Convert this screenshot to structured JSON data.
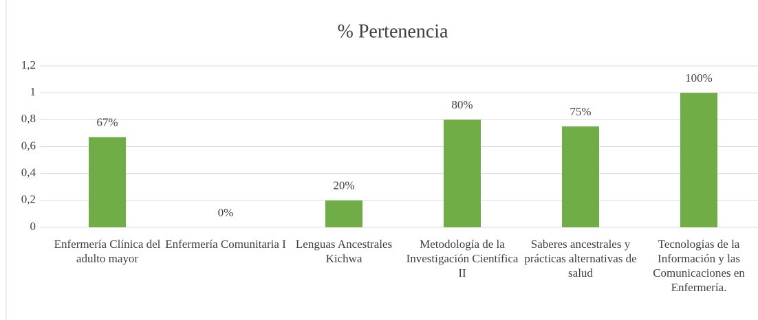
{
  "chart_data": {
    "type": "bar",
    "title": "% Pertenencia",
    "categories": [
      "Enfermería Clínica del adulto mayor",
      "Enfermería Comunitaria I",
      "Lenguas Ancestrales Kichwa",
      "Metodología de la Investigación Científica II",
      "Saberes ancestrales y prácticas alternativas de salud",
      "Tecnologías de la Información y las Comunicaciones en Enfermería."
    ],
    "values": [
      0.67,
      0,
      0.2,
      0.8,
      0.75,
      1
    ],
    "value_labels": [
      "67%",
      "0%",
      "20%",
      "80%",
      "75%",
      "100%"
    ],
    "color": "#70ad47",
    "ylim": [
      0,
      1.2
    ],
    "yticks": [
      0,
      {
        "value": 0.2,
        "label": "0,2"
      },
      {
        "value": 0.4,
        "label": "0,4"
      },
      {
        "value": 0.6,
        "label": "0,6"
      },
      {
        "value": 0.8,
        "label": "0,8"
      },
      1,
      {
        "value": 1.2,
        "label": "1,2"
      }
    ],
    "grid": true
  }
}
